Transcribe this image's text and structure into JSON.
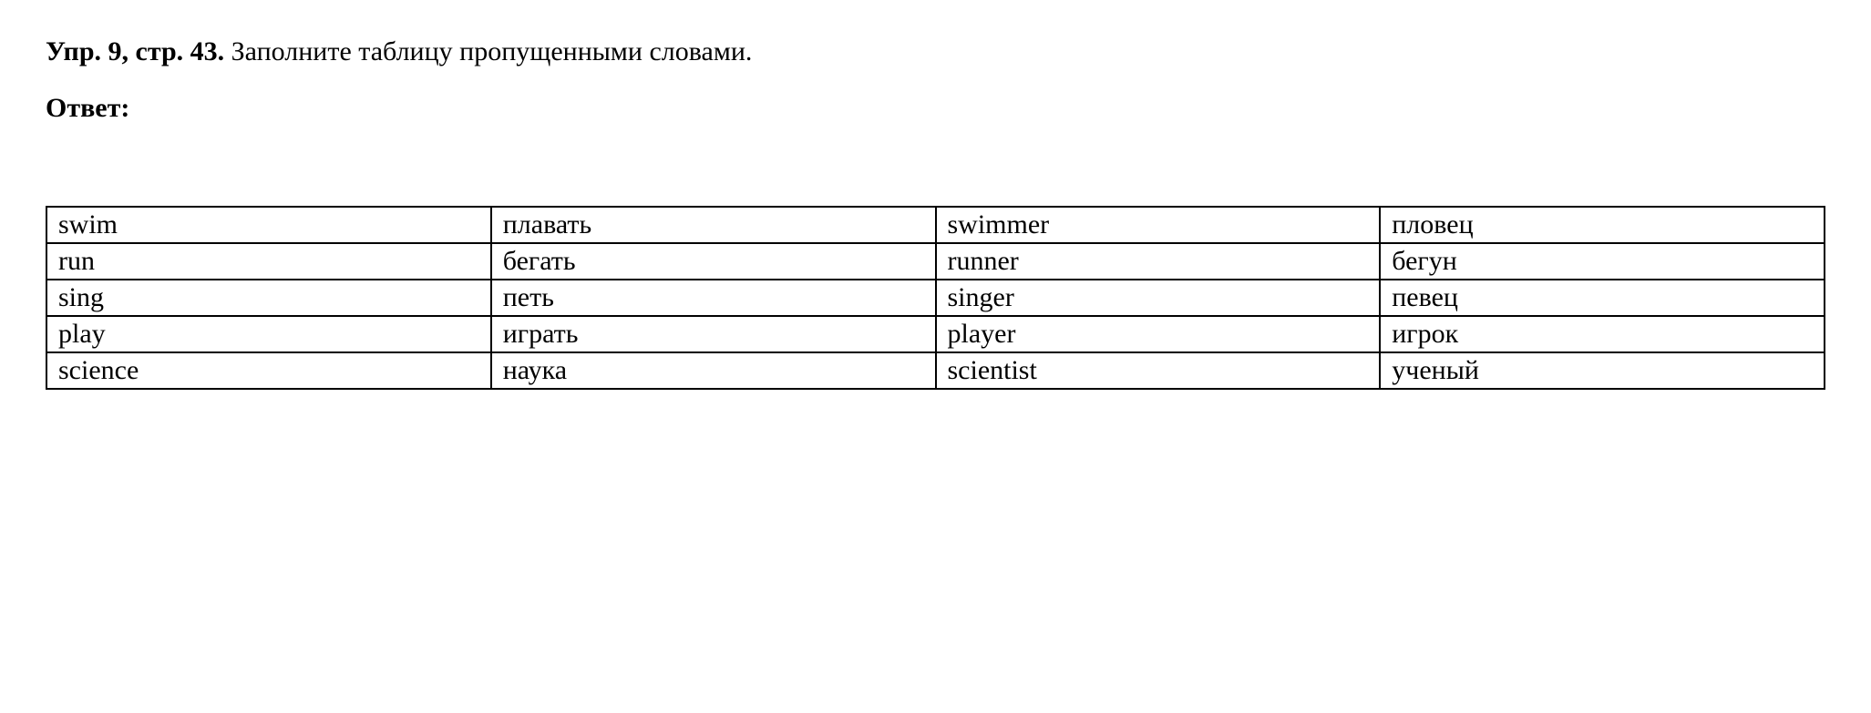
{
  "header": {
    "exercise_prefix": "Упр. 9, стр. 43.",
    "exercise_text": " Заполните таблицу пропущенными словами.",
    "answer_label": "Ответ:"
  },
  "table": {
    "rows": [
      [
        "swim",
        "плавать",
        "swimmer",
        "пловец"
      ],
      [
        "run",
        "бегать",
        "runner",
        "бегун"
      ],
      [
        "sing",
        "петь",
        "singer",
        "певец"
      ],
      [
        "play",
        "играть",
        "player",
        "игрок"
      ],
      [
        "science",
        "наука",
        "scientist",
        "ученый"
      ]
    ],
    "column_widths": [
      "25%",
      "25%",
      "25%",
      "25%"
    ],
    "border_color": "#000000",
    "font_size": 30,
    "cell_padding": "2px 12px"
  }
}
